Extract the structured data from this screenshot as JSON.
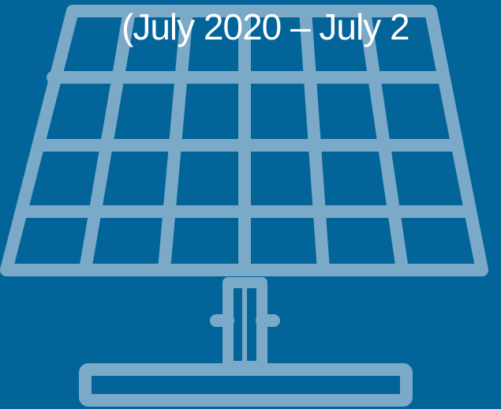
{
  "colors": {
    "background": "#03649a",
    "icon_stroke": "#7aaac8",
    "caption_text": "#ffffff"
  },
  "icon": {
    "name": "solar-panel-icon"
  },
  "caption": {
    "text": "(July 2020 – July 2"
  }
}
